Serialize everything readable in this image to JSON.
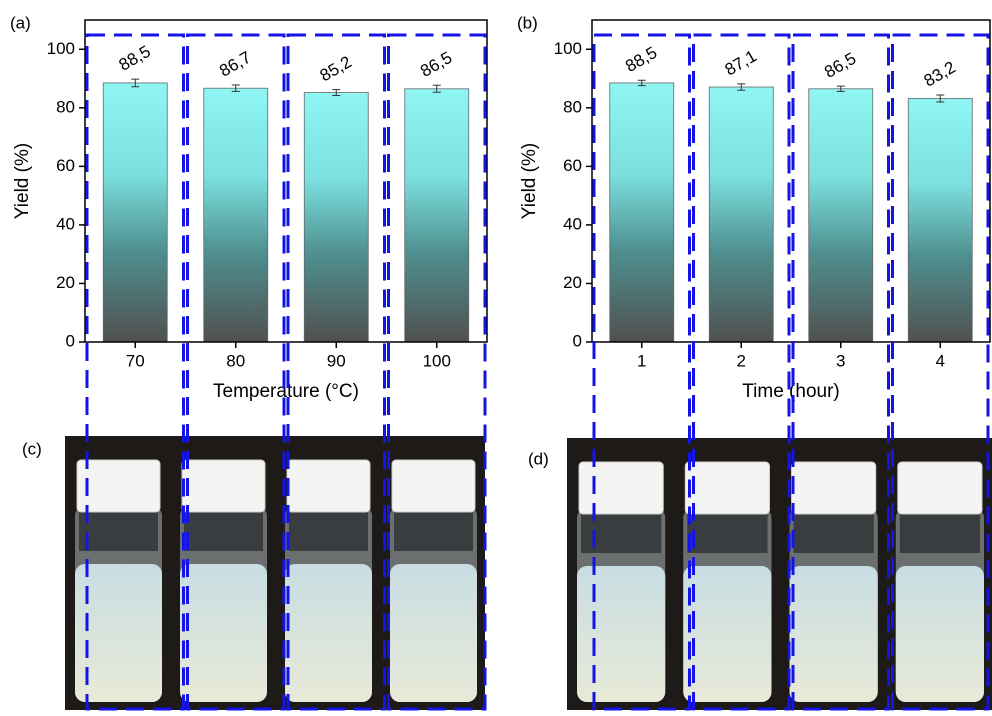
{
  "chart_data": [
    {
      "type": "bar",
      "label": "(a)",
      "xlabel": "Temperature (°C)",
      "ylabel": "Yield (%)",
      "categories": [
        "70",
        "80",
        "90",
        "100"
      ],
      "values": [
        88.5,
        86.7,
        85.2,
        86.5
      ],
      "value_labels": [
        "88,5",
        "86,7",
        "85,2",
        "86,5"
      ],
      "errors": [
        1.3,
        1.1,
        1.0,
        1.2
      ],
      "ylim": [
        0,
        110
      ],
      "yticks": [
        0,
        20,
        40,
        60,
        80,
        100
      ]
    },
    {
      "type": "bar",
      "label": "(b)",
      "xlabel": "Time (hour)",
      "ylabel": "Yield (%)",
      "categories": [
        "1",
        "2",
        "3",
        "4"
      ],
      "values": [
        88.5,
        87.1,
        86.5,
        83.2
      ],
      "value_labels": [
        "88,5",
        "87,1",
        "86,5",
        "83,2"
      ],
      "errors": [
        0.9,
        1.1,
        0.9,
        1.2
      ],
      "ylim": [
        0,
        110
      ],
      "yticks": [
        0,
        20,
        40,
        60,
        80,
        100
      ]
    }
  ],
  "photos": [
    {
      "label": "(c)"
    },
    {
      "label": "(d)"
    }
  ]
}
